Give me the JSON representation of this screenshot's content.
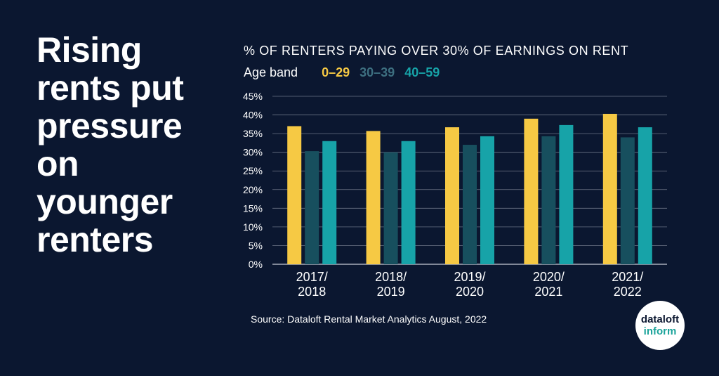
{
  "headline": [
    "Rising",
    "rents put",
    "pressure",
    "on",
    "younger",
    "renters"
  ],
  "source": "Source: Dataloft Rental Market Analytics August, 2022",
  "logo": {
    "top": "dataloft",
    "bottom": "inform"
  },
  "chart_data": {
    "type": "bar",
    "title": "% OF RENTERS PAYING OVER 30% OF EARNINGS ON RENT",
    "legend_title": "Age band",
    "legend_position": "top-left",
    "categories": [
      [
        "2017/",
        "2018"
      ],
      [
        "2018/",
        "2019"
      ],
      [
        "2019/",
        "2020"
      ],
      [
        "2020/",
        "2021"
      ],
      [
        "2021/",
        "2022"
      ]
    ],
    "series": [
      {
        "name": "0–29",
        "color": "#f6c944",
        "values": [
          37,
          35.7,
          36.7,
          39,
          40.3
        ]
      },
      {
        "name": "30–39",
        "color": "#174f5e",
        "values": [
          30.3,
          30,
          32,
          34.3,
          34
        ]
      },
      {
        "name": "40–59",
        "color": "#17a3a8",
        "values": [
          33,
          33,
          34.3,
          37.3,
          36.7
        ]
      }
    ],
    "yticks": [
      "0%",
      "5%",
      "10%",
      "15%",
      "20%",
      "25%",
      "30%",
      "35%",
      "40%",
      "45%"
    ],
    "ylim": [
      0,
      45
    ],
    "grid": true,
    "legend_label_colors": {
      "0–29": "#f6c944",
      "30–39": "#3d6f80",
      "40–59": "#17a3a8"
    }
  }
}
